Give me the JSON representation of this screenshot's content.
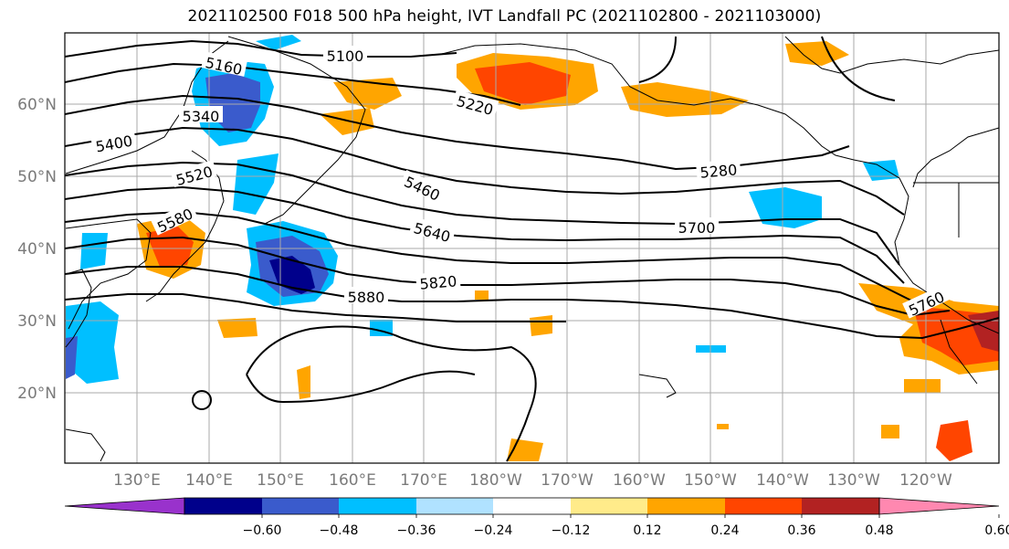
{
  "title": "2021102500 F018 500 hPa height, IVT Landfall PC (2021102800 - 2021103000)",
  "latitude_labels": [
    "60°N",
    "50°N",
    "40°N",
    "30°N",
    "20°N"
  ],
  "longitude_labels": [
    "130°E",
    "140°E",
    "150°E",
    "160°E",
    "170°E",
    "180°W",
    "170°W",
    "160°W",
    "150°W",
    "140°W",
    "130°W",
    "120°W"
  ],
  "height_contour_labels": [
    "5100",
    "5160",
    "5220",
    "5280",
    "5340",
    "5400",
    "5460",
    "5520",
    "5580",
    "5640",
    "5700",
    "5760",
    "5820",
    "5880"
  ],
  "colorbar": {
    "tick_labels": [
      "−0.60",
      "−0.48",
      "−0.36",
      "−0.24",
      "−0.12",
      "0.12",
      "0.24",
      "0.36",
      "0.48",
      "0.60"
    ],
    "colors": [
      "#9932cc",
      "#00008b",
      "#3a5bcc",
      "#00bfff",
      "#b0e2ff",
      "#ffffff",
      "#ffeb8a",
      "#ffa500",
      "#ff4500",
      "#b22222",
      "#ff88b0"
    ]
  },
  "colors": {
    "contour": "#000000",
    "grid": "#aaaaaa",
    "coastline": "#000000",
    "axis_label": "#7a7a7a"
  }
}
